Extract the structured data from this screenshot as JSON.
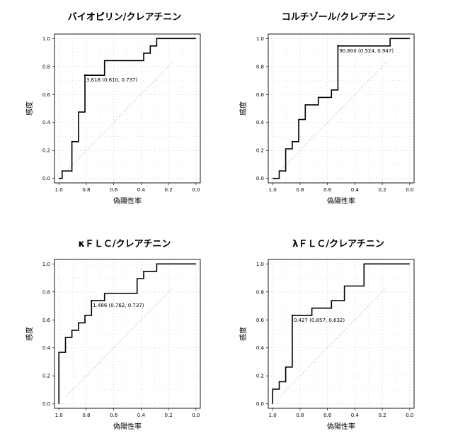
{
  "chart_data": [
    {
      "type": "line",
      "title": "バイオピリン/クレアチニン",
      "xlabel": "偽陽性率",
      "ylabel": "感度",
      "xlim": [
        1.0,
        0.0
      ],
      "ylim": [
        0.0,
        1.0
      ],
      "x_reversed": true,
      "x_ticks": [
        "1.0",
        "0.8",
        "0.6",
        "0.4",
        "0.2",
        "0.0"
      ],
      "y_ticks": [
        "0.0",
        "0.2",
        "0.4",
        "0.6",
        "0.8",
        "1.0"
      ],
      "grid": true,
      "series": [
        {
          "x": [
            1.0,
            0.976,
            0.976,
            0.905,
            0.905,
            0.857,
            0.857,
            0.81,
            0.81,
            0.667,
            0.667,
            0.381,
            0.381,
            0.333,
            0.333,
            0.286,
            0.286,
            0.0
          ],
          "y": [
            0.0,
            0.0,
            0.053,
            0.053,
            0.263,
            0.263,
            0.474,
            0.474,
            0.737,
            0.737,
            0.842,
            0.842,
            0.895,
            0.895,
            0.947,
            0.947,
            1.0,
            1.0
          ]
        }
      ],
      "reference_line": {
        "x": [
          0.95,
          0.17
        ],
        "y": [
          0.05,
          0.83
        ]
      },
      "annotation": {
        "text": "3.618 (0.810, 0.737)",
        "x": 0.81,
        "y": 0.737
      }
    },
    {
      "type": "line",
      "title": "コルチゾール/クレアチニン",
      "xlabel": "偽陽性率",
      "ylabel": "感度",
      "xlim": [
        1.0,
        0.0
      ],
      "ylim": [
        0.0,
        1.0
      ],
      "x_reversed": true,
      "x_ticks": [
        "1.0",
        "0.8",
        "0.6",
        "0.4",
        "0.2",
        "0.0"
      ],
      "y_ticks": [
        "0.0",
        "0.2",
        "0.4",
        "0.6",
        "0.8",
        "1.0"
      ],
      "grid": true,
      "series": [
        {
          "x": [
            1.0,
            0.952,
            0.952,
            0.905,
            0.905,
            0.857,
            0.857,
            0.81,
            0.81,
            0.762,
            0.762,
            0.667,
            0.667,
            0.571,
            0.571,
            0.524,
            0.524,
            0.143,
            0.143,
            0.0
          ],
          "y": [
            0.0,
            0.0,
            0.053,
            0.053,
            0.211,
            0.211,
            0.263,
            0.263,
            0.421,
            0.421,
            0.526,
            0.526,
            0.579,
            0.579,
            0.632,
            0.632,
            0.947,
            0.947,
            1.0,
            1.0
          ]
        }
      ],
      "reference_line": {
        "x": [
          0.95,
          0.17
        ],
        "y": [
          0.05,
          0.83
        ]
      },
      "annotation": {
        "text": "90.800 (0.524, 0.947)",
        "x": 0.524,
        "y": 0.947
      }
    },
    {
      "type": "line",
      "title": "κＦＬＣ/クレアチニン",
      "xlabel": "偽陽性率",
      "ylabel": "感度",
      "xlim": [
        1.0,
        0.0
      ],
      "ylim": [
        0.0,
        1.0
      ],
      "x_reversed": true,
      "x_ticks": [
        "1.0",
        "0.8",
        "0.6",
        "0.4",
        "0.2",
        "0.0"
      ],
      "y_ticks": [
        "0.0",
        "0.2",
        "0.4",
        "0.6",
        "0.8",
        "1.0"
      ],
      "grid": true,
      "series": [
        {
          "x": [
            1.0,
            1.0,
            0.952,
            0.952,
            0.905,
            0.905,
            0.857,
            0.857,
            0.81,
            0.81,
            0.762,
            0.762,
            0.667,
            0.667,
            0.429,
            0.429,
            0.381,
            0.381,
            0.286,
            0.286,
            0.0
          ],
          "y": [
            0.0,
            0.368,
            0.368,
            0.474,
            0.474,
            0.526,
            0.526,
            0.579,
            0.579,
            0.632,
            0.632,
            0.737,
            0.737,
            0.789,
            0.789,
            0.895,
            0.895,
            0.947,
            0.947,
            1.0,
            1.0
          ]
        }
      ],
      "reference_line": {
        "x": [
          0.95,
          0.17
        ],
        "y": [
          0.05,
          0.83
        ]
      },
      "annotation": {
        "text": "1.486 (0.762, 0.737)",
        "x": 0.762,
        "y": 0.737
      }
    },
    {
      "type": "line",
      "title": "λＦＬＣ/クレアチニン",
      "xlabel": "偽陽性率",
      "ylabel": "感度",
      "xlim": [
        1.0,
        0.0
      ],
      "ylim": [
        0.0,
        1.0
      ],
      "x_reversed": true,
      "x_ticks": [
        "1.0",
        "0.8",
        "0.6",
        "0.4",
        "0.2",
        "0.0"
      ],
      "y_ticks": [
        "0.0",
        "0.2",
        "0.4",
        "0.6",
        "0.8",
        "1.0"
      ],
      "grid": true,
      "series": [
        {
          "x": [
            1.0,
            1.0,
            0.952,
            0.952,
            0.905,
            0.905,
            0.857,
            0.857,
            0.714,
            0.714,
            0.571,
            0.571,
            0.476,
            0.476,
            0.333,
            0.333,
            0.0
          ],
          "y": [
            0.0,
            0.105,
            0.105,
            0.158,
            0.158,
            0.263,
            0.263,
            0.632,
            0.632,
            0.684,
            0.684,
            0.737,
            0.737,
            0.842,
            0.842,
            1.0,
            1.0
          ]
        }
      ],
      "reference_line": {
        "x": [
          0.95,
          0.17
        ],
        "y": [
          0.05,
          0.83
        ]
      },
      "annotation": {
        "text": "0.427 (0.857, 0.632)",
        "x": 0.857,
        "y": 0.632
      }
    }
  ]
}
